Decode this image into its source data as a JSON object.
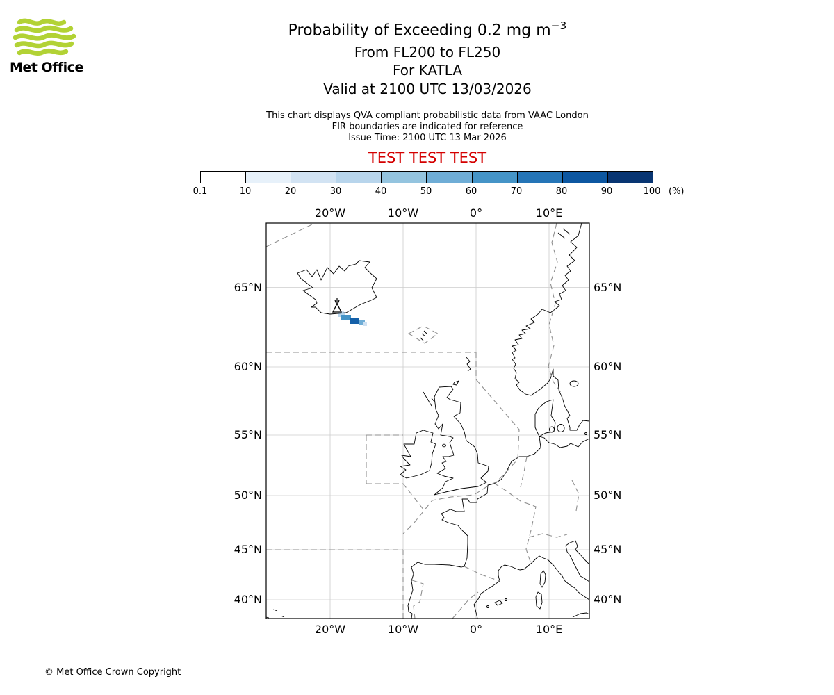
{
  "logo": {
    "brand": "Met Office",
    "green": "#b2d235"
  },
  "header": {
    "title_main": "Probability of Exceeding 0.2 mg m",
    "title_sup": "−3",
    "subtitle_fl": "From FL200 to FL250",
    "subtitle_volcano": "For KATLA",
    "subtitle_valid": "Valid at 2100 UTC 13/03/2026",
    "info_line1": "This chart displays QVA compliant probabilistic data from VAAC London",
    "info_line2": "FIR boundaries are indicated for reference",
    "info_line3": "Issue Time: 2100 UTC 13 Mar 2026",
    "test_banner": "TEST TEST TEST",
    "test_color": "#d40000"
  },
  "legend": {
    "tick_labels": [
      "0.1",
      "10",
      "20",
      "30",
      "40",
      "50",
      "60",
      "70",
      "80",
      "90",
      "100"
    ],
    "unit": "(%)",
    "colors": [
      "#ffffff",
      "#e7f1fa",
      "#d2e3f3",
      "#b8d5ec",
      "#94c4df",
      "#6fadd6",
      "#4594c7",
      "#2575b7",
      "#0d57a1",
      "#083572"
    ]
  },
  "map": {
    "lon_labels": [
      "20°W",
      "10°W",
      "0°",
      "10°E"
    ],
    "lat_labels": [
      "65°N",
      "60°N",
      "55°N",
      "50°N",
      "45°N",
      "40°N"
    ],
    "volcano_name": "KATLA"
  },
  "footer": {
    "copyright": "© Met Office Crown Copyright"
  },
  "chart_data": {
    "type": "heatmap",
    "title": "Probability of Exceeding 0.2 mg m−3",
    "subtitle": [
      "From FL200 to FL250",
      "For KATLA",
      "Valid at 2100 UTC 13/03/2026"
    ],
    "legend_bin_edges_percent": [
      0.1,
      10,
      20,
      30,
      40,
      50,
      60,
      70,
      80,
      90,
      100
    ],
    "legend_unit": "%",
    "x_axis": {
      "label": "longitude",
      "ticks": [
        "20°W",
        "10°W",
        "0°",
        "10°E"
      ],
      "range": [
        "28.8°W",
        "15.5°E"
      ]
    },
    "y_axis": {
      "label": "latitude",
      "ticks": [
        "65°N",
        "60°N",
        "55°N",
        "50°N",
        "45°N",
        "40°N"
      ],
      "range": [
        "38°N",
        "68.5°N"
      ],
      "grid": true
    },
    "source": {
      "name": "KATLA",
      "marker": "volcano",
      "approx_position": {
        "lon": "19°W",
        "lat": "63.6°N"
      }
    },
    "plume": {
      "description": "Small block of non-zero probability extending ESE from Katla over south Iceland coast",
      "approx_extent": {
        "lon": [
          "19.6°W",
          "14.8°W"
        ],
        "lat": [
          "62.7°N",
          "63.6°N"
        ]
      },
      "max_probability_band_percent": "70-80 near source, decreasing to <10 at the eastern tail"
    },
    "overlays": [
      "coastlines",
      "FIR boundaries (dashed)"
    ]
  }
}
